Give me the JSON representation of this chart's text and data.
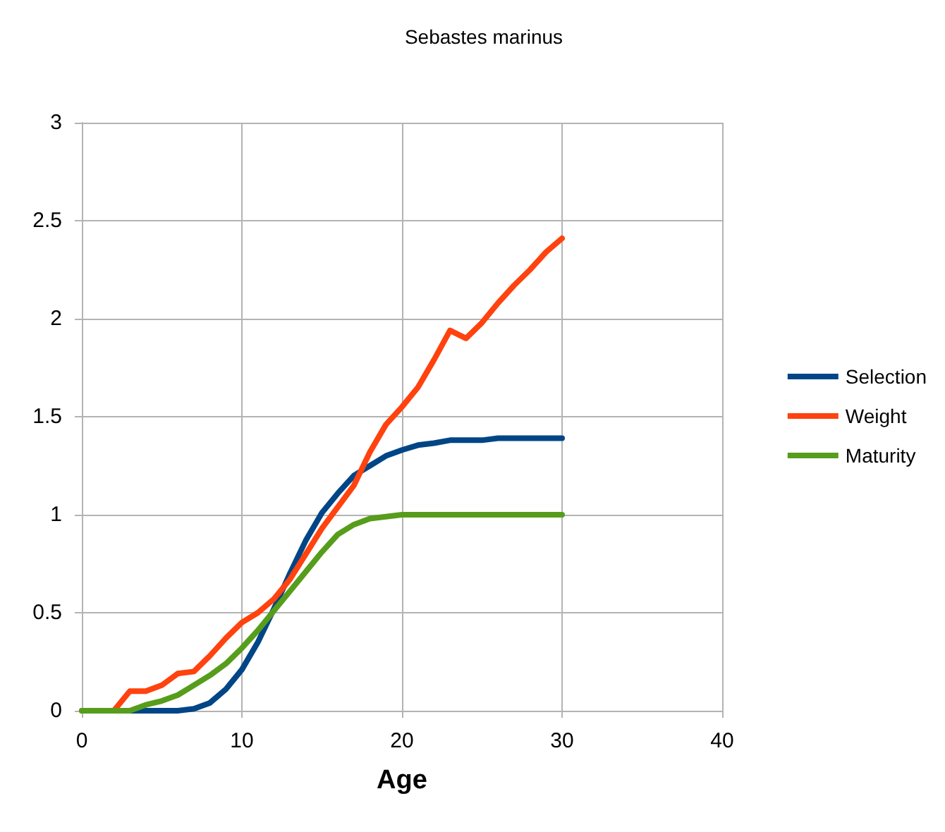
{
  "chart_data": {
    "type": "line",
    "title": "Sebastes marinus",
    "xlabel": "Age",
    "x": [
      0,
      1,
      2,
      3,
      4,
      5,
      6,
      7,
      8,
      9,
      10,
      11,
      12,
      13,
      14,
      15,
      16,
      17,
      18,
      19,
      20,
      21,
      22,
      23,
      24,
      25,
      26,
      27,
      28,
      29,
      30
    ],
    "xlim": [
      0,
      40
    ],
    "xticks": [
      0,
      10,
      20,
      30,
      40
    ],
    "ylim": [
      0,
      3
    ],
    "yticks": [
      0,
      0.5,
      1,
      1.5,
      2,
      2.5,
      3
    ],
    "grid": true,
    "legend": "right",
    "marker": "none",
    "line_style": "solid",
    "series": [
      {
        "name": "Selection",
        "color": "#004586",
        "values": [
          null,
          null,
          0,
          0,
          0,
          0,
          0,
          0.01,
          0.04,
          0.11,
          0.21,
          0.35,
          0.52,
          0.7,
          0.87,
          1.01,
          1.11,
          1.2,
          1.25,
          1.3,
          1.33,
          1.355,
          1.365,
          1.38,
          1.38,
          1.38,
          1.39,
          1.39,
          1.39,
          1.39,
          1.39
        ]
      },
      {
        "name": "Weight",
        "color": "#ff420e",
        "values": [
          0,
          0,
          0,
          0.1,
          0.1,
          0.13,
          0.19,
          0.2,
          0.28,
          0.37,
          0.45,
          0.5,
          0.57,
          0.67,
          0.8,
          0.93,
          1.04,
          1.15,
          1.32,
          1.46,
          1.55,
          1.65,
          1.79,
          1.94,
          1.9,
          1.98,
          2.08,
          2.17,
          2.25,
          2.34,
          2.41
        ]
      },
      {
        "name": "Maturity",
        "color": "#579d1c",
        "values": [
          0,
          0,
          0,
          0,
          0.03,
          0.05,
          0.08,
          0.13,
          0.18,
          0.24,
          0.32,
          0.41,
          0.51,
          0.61,
          0.71,
          0.81,
          0.9,
          0.95,
          0.98,
          0.99,
          1,
          1,
          1,
          1,
          1,
          1,
          1,
          1,
          1,
          1,
          1
        ]
      }
    ]
  }
}
